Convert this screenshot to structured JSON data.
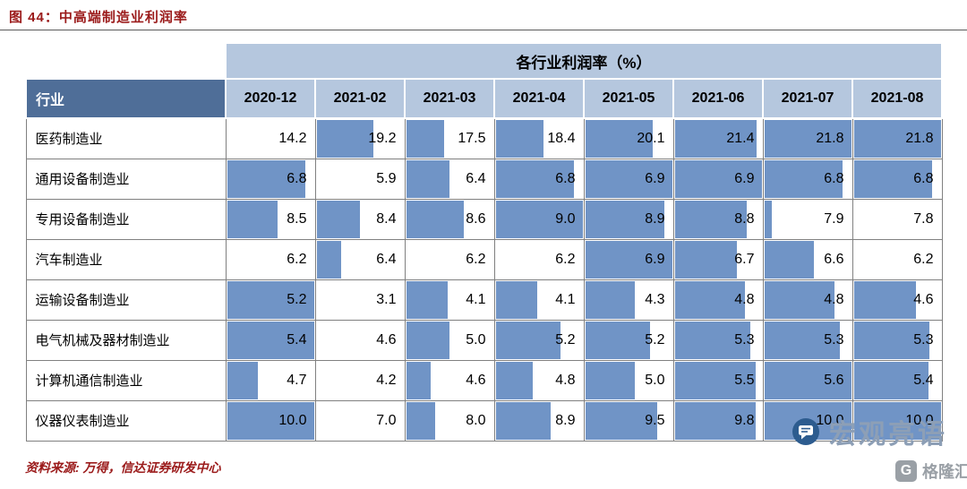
{
  "figure": {
    "title": "图 44：中高端制造业利润率",
    "source": "资料来源: 万得，信达证券研发中心"
  },
  "chart_data": {
    "type": "table",
    "title": "各行业利润率（%）",
    "row_header_label": "行业",
    "columns": [
      "2020-12",
      "2021-02",
      "2021-03",
      "2021-04",
      "2021-05",
      "2021-06",
      "2021-07",
      "2021-08"
    ],
    "series": [
      {
        "name": "医药制造业",
        "values": [
          14.2,
          19.2,
          17.5,
          18.4,
          20.1,
          21.4,
          21.8,
          21.8
        ]
      },
      {
        "name": "通用设备制造业",
        "values": [
          6.8,
          5.9,
          6.4,
          6.8,
          6.9,
          6.9,
          6.8,
          6.8
        ]
      },
      {
        "name": "专用设备制造业",
        "values": [
          8.5,
          8.4,
          8.6,
          9.0,
          8.9,
          8.8,
          7.9,
          7.8
        ]
      },
      {
        "name": "汽车制造业",
        "values": [
          6.2,
          6.4,
          6.2,
          6.2,
          6.9,
          6.7,
          6.6,
          6.2
        ]
      },
      {
        "name": "运输设备制造业",
        "values": [
          5.2,
          3.1,
          4.1,
          4.1,
          4.3,
          4.8,
          4.8,
          4.6
        ]
      },
      {
        "name": "电气机械及器材制造业",
        "values": [
          5.4,
          4.6,
          5.0,
          5.2,
          5.2,
          5.3,
          5.3,
          5.3
        ]
      },
      {
        "name": "计算机通信制造业",
        "values": [
          4.7,
          4.2,
          4.6,
          4.8,
          5.0,
          5.5,
          5.6,
          5.4
        ]
      },
      {
        "name": "仪器仪表制造业",
        "values": [
          10.0,
          7.0,
          8.0,
          8.9,
          9.5,
          9.8,
          10.0,
          10.0
        ]
      }
    ],
    "unit": "%",
    "value_format": "one-decimal",
    "bar_scaling": "per-row: min value = no bar, max value = full cell width"
  },
  "watermark": {
    "text": "宏观亮语"
  },
  "logo": {
    "letter": "G",
    "text": "格隆汇"
  },
  "colors": {
    "title_red": "#9b1b1b",
    "header_dark_blue": "#4f6e98",
    "header_light_blue": "#b5c7de",
    "bar_blue": "#7094c6",
    "grid_border": "#808080",
    "watermark_gray_blue": "#8d9fb6"
  }
}
